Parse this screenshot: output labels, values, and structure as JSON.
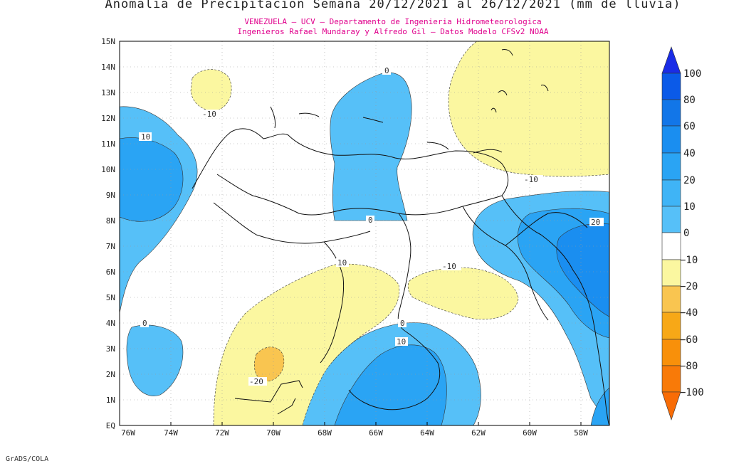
{
  "title": "Anomalia de Precipitacion Semana 20/12/2021 al 26/12/2021 (mm de lluvia)",
  "subtitle_line1": "VENEZUELA – UCV – Departamento de Ingenieria Hidrometeorologica",
  "subtitle_line2": "Ingenieros Rafael Mundaray y Alfredo Gil – Datos Modelo CFSv2 NOAA",
  "credit": "GrADS/COLA",
  "map": {
    "lon_ticks": [
      "76W",
      "74W",
      "72W",
      "70W",
      "68W",
      "66W",
      "64W",
      "62W",
      "60W",
      "58W"
    ],
    "lat_ticks": [
      "EQ",
      "1N",
      "2N",
      "3N",
      "4N",
      "5N",
      "6N",
      "7N",
      "8N",
      "9N",
      "10N",
      "11N",
      "12N",
      "13N",
      "14N",
      "15N"
    ],
    "contour_labels": [
      "10",
      "-10",
      "0",
      "0",
      "-10",
      "0",
      "20",
      "-10",
      "10",
      "0",
      "10",
      "-20",
      "0"
    ]
  },
  "legend": {
    "levels": [
      "100",
      "80",
      "60",
      "40",
      "20",
      "10",
      "0",
      "−10",
      "−20",
      "−40",
      "−60",
      "−80",
      "−100"
    ],
    "colors": {
      "c100": "#1a2ce6",
      "c80": "#0b5ae8",
      "c60": "#1276e8",
      "c40": "#1a8ef0",
      "c20": "#2aa4f4",
      "c10": "#56c0f8",
      "c0": "#ffffff",
      "cm10": "#fbf7a0",
      "cm20": "#f9c550",
      "cm40": "#f7a817",
      "cm60": "#f8900a",
      "cm80": "#f87a08",
      "cm100": "#f86c06"
    }
  }
}
